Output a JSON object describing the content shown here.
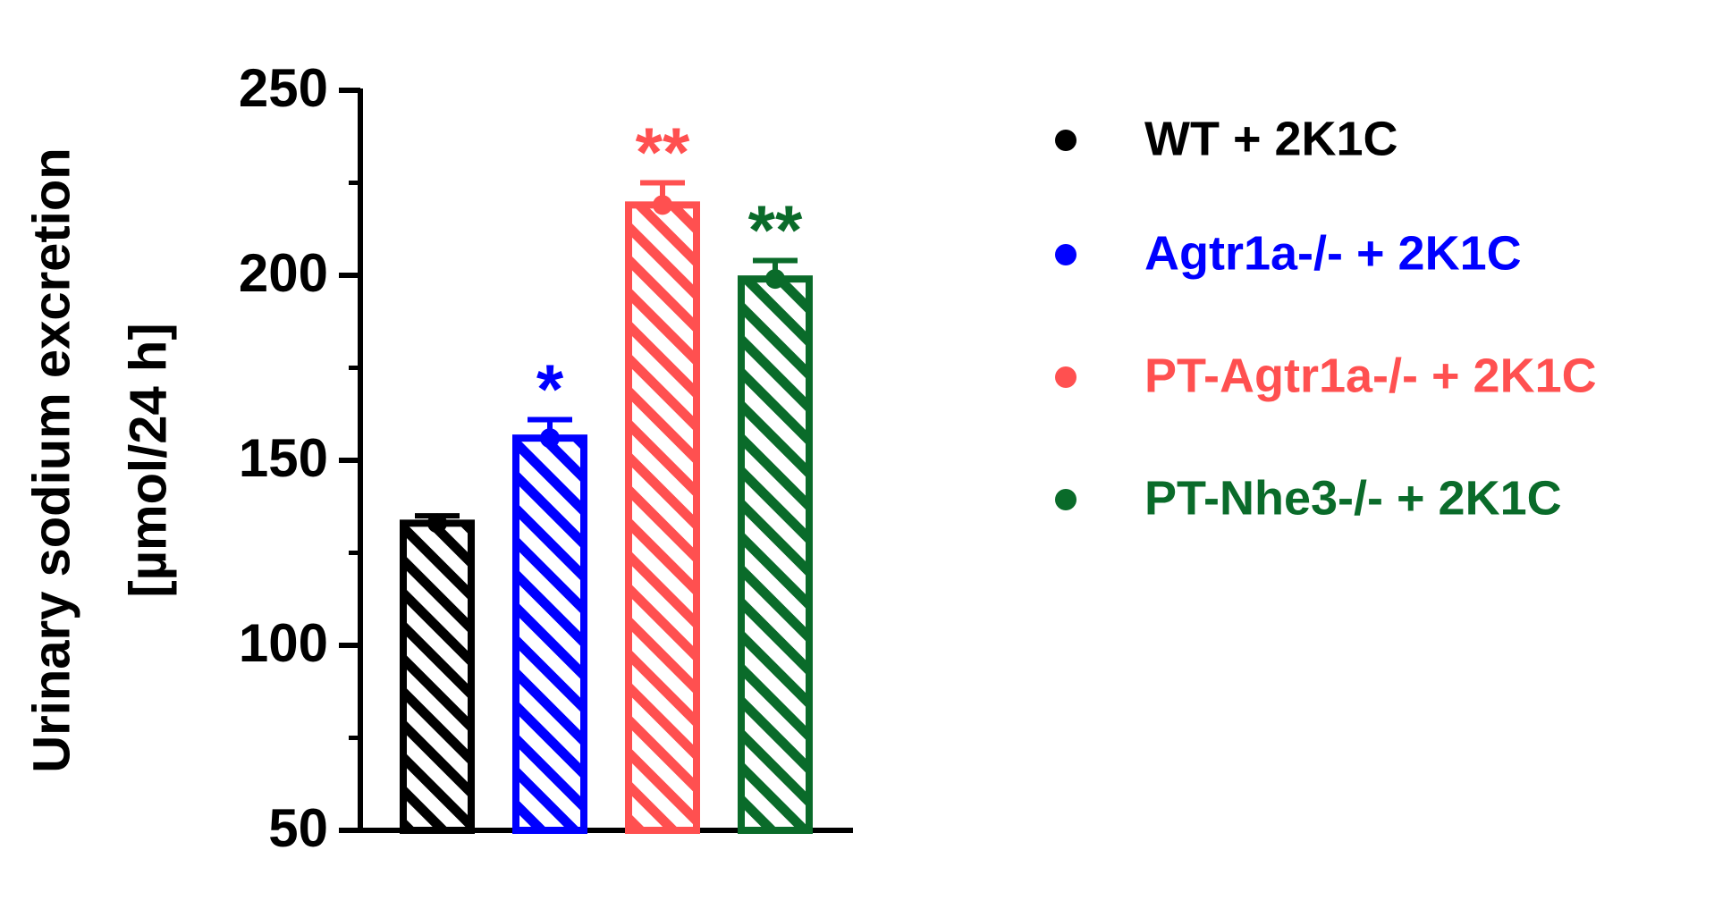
{
  "chart_data": {
    "type": "bar",
    "ylabel": [
      "Urinary sodium excretion",
      "[µmol/24 h]"
    ],
    "ylim": [
      50,
      250
    ],
    "yticks": [
      50,
      100,
      150,
      200,
      250
    ],
    "yminorticks": [
      75,
      125,
      175,
      225
    ],
    "hatch": true,
    "legend": "right",
    "series": [
      {
        "name": "WT + 2K1C",
        "color": "#000000",
        "values": [
          133
        ],
        "errors": [
          2
        ],
        "annotation": null
      },
      {
        "name": "Agtr1a-/- + 2K1C",
        "color": "#0000ff",
        "values": [
          156
        ],
        "errors": [
          5
        ],
        "annotation": "*"
      },
      {
        "name": "PT-Agtr1a-/- + 2K1C",
        "color": "#ff5050",
        "values": [
          219
        ],
        "errors": [
          6
        ],
        "annotation": "**"
      },
      {
        "name": "PT-Nhe3-/- + 2K1C",
        "color": "#0a6b2a",
        "values": [
          199
        ],
        "errors": [
          5
        ],
        "annotation": "**"
      }
    ]
  }
}
